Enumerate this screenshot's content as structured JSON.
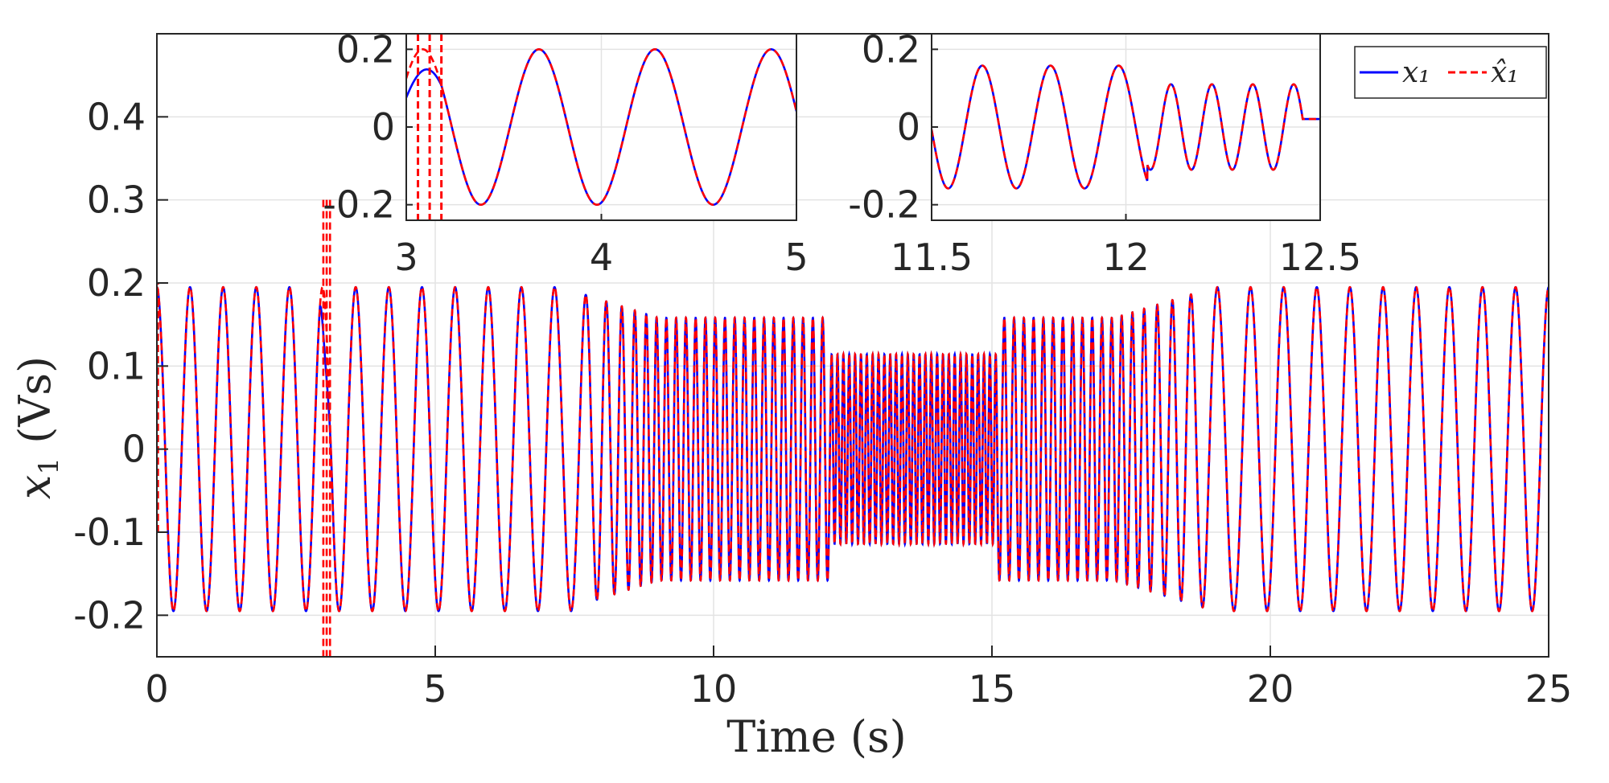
{
  "chart_data": [
    {
      "type": "line",
      "id": "main",
      "xlabel": "Time (s)",
      "ylabel_var": "x",
      "ylabel_sub": "1",
      "ylabel_unit": "(Vs)",
      "xlim": [
        0,
        25
      ],
      "ylim": [
        -0.25,
        0.5
      ],
      "xticks": [
        0,
        5,
        10,
        15,
        20,
        25
      ],
      "xtick_labels": [
        "0",
        "5",
        "10",
        "15",
        "20",
        "25"
      ],
      "yticks": [
        -0.2,
        -0.1,
        0,
        0.1,
        0.2,
        0.3,
        0.4
      ],
      "ytick_labels": [
        "-0.2",
        "-0.1",
        "0",
        "0.1",
        "0.2",
        "0.3",
        "0.4"
      ],
      "grid": true,
      "legend_position": "top-right",
      "series": [
        {
          "name": "x₁",
          "color": "#0000ff",
          "style": "solid"
        },
        {
          "name": "x̂₁",
          "color": "#ff0000",
          "style": "dashed"
        }
      ],
      "segments": [
        {
          "from": 0,
          "to": 7.5,
          "freq_hz": 1.68,
          "amplitude": 0.195
        },
        {
          "from": 7.5,
          "to": 9.0,
          "freq_hz_start": 1.68,
          "freq_hz_end": 5.7,
          "amplitude_start": 0.19,
          "amplitude_end": 0.158
        },
        {
          "from": 9.0,
          "to": 12.1,
          "freq_hz": 5.7,
          "amplitude": 0.158
        },
        {
          "from": 12.1,
          "to": 15.1,
          "freq_hz": 9.5,
          "amplitude": 0.114
        },
        {
          "from": 15.1,
          "to": 17.2,
          "freq_hz": 5.7,
          "amplitude": 0.158
        },
        {
          "from": 17.2,
          "to": 19.0,
          "freq_hz_start": 5.7,
          "freq_hz_end": 1.68,
          "amplitude_start": 0.158,
          "amplitude_end": 0.195
        },
        {
          "from": 19.0,
          "to": 25.0,
          "freq_hz": 1.68,
          "amplitude": 0.195
        }
      ],
      "estimator_transient": {
        "time": 3.05,
        "estimate_range": [
          -0.25,
          0.3
        ]
      }
    },
    {
      "type": "line",
      "id": "inset-left",
      "xlim": [
        3,
        5
      ],
      "ylim": [
        -0.24,
        0.24
      ],
      "xticks": [
        3,
        4,
        5
      ],
      "xtick_labels": [
        "3",
        "4",
        "5"
      ],
      "yticks": [
        -0.2,
        0,
        0.2
      ],
      "ytick_labels": [
        "-0.2",
        "0",
        "0.2"
      ],
      "freq_hz": 1.68,
      "amplitude": 0.2,
      "reset_time": 3.05
    },
    {
      "type": "line",
      "id": "inset-right",
      "xlim": [
        11.5,
        12.5
      ],
      "ylim": [
        -0.24,
        0.24
      ],
      "xticks": [
        11.5,
        12,
        12.5
      ],
      "xtick_labels": [
        "11.5",
        "12",
        "12.5"
      ],
      "yticks": [
        -0.2,
        0,
        0.2
      ],
      "ytick_labels": [
        "-0.2",
        "0",
        "0.2"
      ],
      "segments": [
        {
          "from": 11.5,
          "to": 12.1,
          "freq_hz": 5.7,
          "amplitude": 0.158
        },
        {
          "from": 12.1,
          "to": 12.5,
          "freq_hz": 9.5,
          "amplitude": 0.11
        }
      ]
    }
  ]
}
